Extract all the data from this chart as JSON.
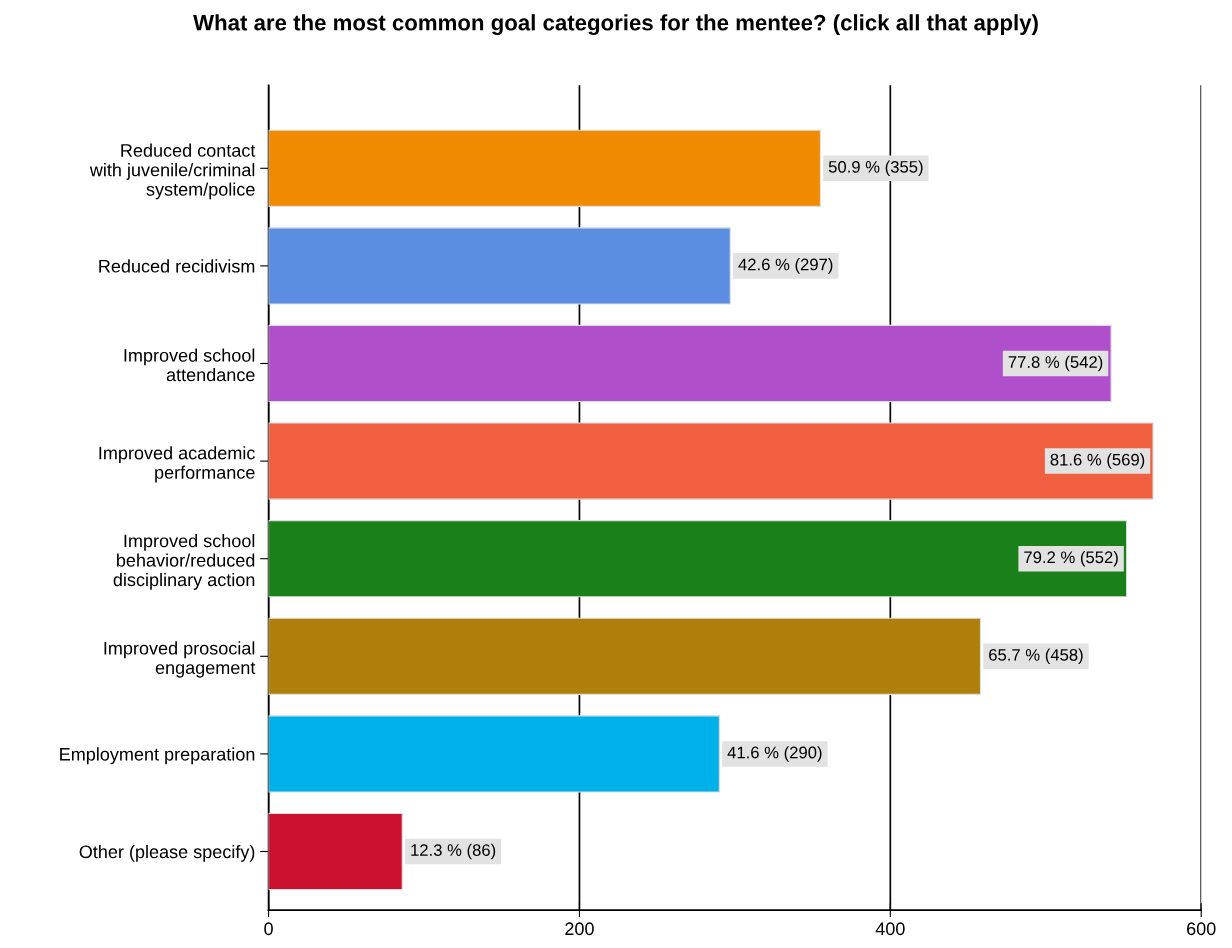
{
  "chart_data": {
    "type": "bar",
    "orientation": "horizontal",
    "title": "What are the most common goal categories for the mentee? (click all that apply)",
    "categories": [
      "Reduced contact\nwith juvenile/criminal\nsystem/police",
      "Reduced recidivism",
      "Improved school\nattendance",
      "Improved academic\nperformance",
      "Improved school\nbehavior/reduced\ndisciplinary action",
      "Improved prosocial\nengagement",
      "Employment preparation",
      "Other (please specify)"
    ],
    "values": [
      355,
      297,
      542,
      569,
      552,
      458,
      290,
      86
    ],
    "colors": [
      "#f08a00",
      "#5b8ee0",
      "#b04fcc",
      "#f05f40",
      "#1a801a",
      "#b07e0a",
      "#00b0e8",
      "#cc1030"
    ],
    "value_labels": [
      "50.9 % (355)",
      "42.6 % (297)",
      "77.8 % (542)",
      "81.6 % (569)",
      "79.2 % (552)",
      "65.7 % (458)",
      "41.6 % (290)",
      "12.3 % (86)"
    ],
    "xlim": [
      0,
      600
    ],
    "xticks": [
      0,
      200,
      400,
      600
    ],
    "grid": "x"
  }
}
